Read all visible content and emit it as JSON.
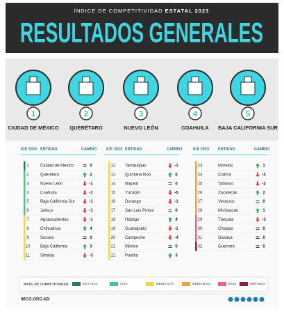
{
  "header": {
    "subtitle_prefix": "ÍNDICE DE COMPETITIVIDAD",
    "subtitle_strong": "ESTATAL 2023",
    "title": "RESULTADOS GENERALES"
  },
  "podium": [
    {
      "rank": 1,
      "name": "CIUDAD DE MÉXICO"
    },
    {
      "rank": 2,
      "name": "QUERÉTARO"
    },
    {
      "rank": 3,
      "name": "NUEVO LEÓN"
    },
    {
      "rank": 4,
      "name": "COAHUILA"
    },
    {
      "rank": 5,
      "name": "BAJA CALIFORNIA SUR"
    }
  ],
  "table": {
    "columns": [
      "ICE 2023",
      "ENTIDAD",
      "CAMBIO"
    ],
    "rows": [
      {
        "rank": 1,
        "entity": "Ciudad de México",
        "change": 0,
        "level": 0
      },
      {
        "rank": 2,
        "entity": "Querétaro",
        "change": 2,
        "level": 1
      },
      {
        "rank": 3,
        "entity": "Nuevo León",
        "change": -1,
        "level": 1
      },
      {
        "rank": 4,
        "entity": "Coahuila",
        "change": -1,
        "level": 1
      },
      {
        "rank": 5,
        "entity": "Baja California Sur",
        "change": -1,
        "level": 1
      },
      {
        "rank": 6,
        "entity": "Jalisco",
        "change": -1,
        "level": 1
      },
      {
        "rank": 7,
        "entity": "Aguascalientes",
        "change": -1,
        "level": 2
      },
      {
        "rank": 8,
        "entity": "Chihuahua",
        "change": 4,
        "level": 2
      },
      {
        "rank": 9,
        "entity": "Sonora",
        "change": 0,
        "level": 2
      },
      {
        "rank": 10,
        "entity": "Baja California",
        "change": 3,
        "level": 2
      },
      {
        "rank": 11,
        "entity": "Sinaloa",
        "change": -3,
        "level": 2
      },
      {
        "rank": 12,
        "entity": "Tamaulipas",
        "change": -1,
        "level": 2
      },
      {
        "rank": 13,
        "entity": "Quintana Roo",
        "change": 6,
        "level": 2
      },
      {
        "rank": 14,
        "entity": "Nayarit",
        "change": 0,
        "level": 2
      },
      {
        "rank": 15,
        "entity": "Yucatán",
        "change": -5,
        "level": 2
      },
      {
        "rank": 16,
        "entity": "Durango",
        "change": -1,
        "level": 2
      },
      {
        "rank": 17,
        "entity": "San Luis Potosí",
        "change": 0,
        "level": 2
      },
      {
        "rank": 18,
        "entity": "Hidalgo",
        "change": 4,
        "level": 2
      },
      {
        "rank": 19,
        "entity": "Guanajuato",
        "change": -1,
        "level": 2
      },
      {
        "rank": 20,
        "entity": "Campeche",
        "change": -4,
        "level": 2
      },
      {
        "rank": 21,
        "entity": "México",
        "change": 0,
        "level": 2
      },
      {
        "rank": 22,
        "entity": "Puebla",
        "change": 3,
        "level": 2
      },
      {
        "rank": 23,
        "entity": "Morelos",
        "change": 1,
        "level": 3
      },
      {
        "rank": 24,
        "entity": "Colima",
        "change": -4,
        "level": 3
      },
      {
        "rank": 25,
        "entity": "Tabasco",
        "change": -2,
        "level": 3
      },
      {
        "rank": 26,
        "entity": "Zacatecas",
        "change": 2,
        "level": 3
      },
      {
        "rank": 27,
        "entity": "Veracruz",
        "change": 0,
        "level": 3
      },
      {
        "rank": 28,
        "entity": "Michoacán",
        "change": 1,
        "level": 3
      },
      {
        "rank": 29,
        "entity": "Tlaxcala",
        "change": -3,
        "level": 4
      },
      {
        "rank": 30,
        "entity": "Chiapas",
        "change": 0,
        "level": 4
      },
      {
        "rank": 31,
        "entity": "Oaxaca",
        "change": 0,
        "level": 4
      },
      {
        "rank": 32,
        "entity": "Guerrero",
        "change": 0,
        "level": 5
      }
    ]
  },
  "legend": {
    "title": "NIVEL DE COMPETITIVIDAD",
    "items": [
      {
        "label": "MUY ALTA",
        "color": "#23804a"
      },
      {
        "label": "ALTA",
        "color": "#4cc38a"
      },
      {
        "label": "MEDIA ALTA",
        "color": "#f4d44a"
      },
      {
        "label": "MEDIA BAJA",
        "color": "#f0a53a"
      },
      {
        "label": "BAJA",
        "color": "#e8638a"
      },
      {
        "label": "MUY BAJA",
        "color": "#8e1d43"
      }
    ]
  },
  "footer": {
    "url": "IMCO.ORG.MX"
  }
}
